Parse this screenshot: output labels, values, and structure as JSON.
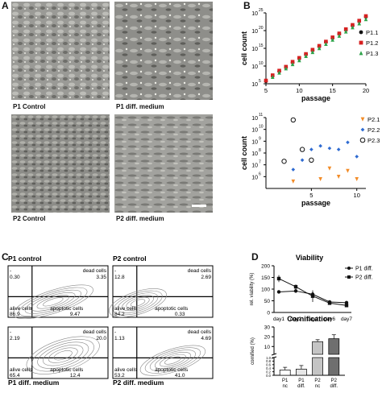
{
  "panel_labels": {
    "a": "A",
    "b": "B",
    "c": "C",
    "d": "D"
  },
  "panel_a": {
    "images": [
      {
        "caption": "P1 Control"
      },
      {
        "caption": "P1 diff. medium"
      },
      {
        "caption": "P2 Control"
      },
      {
        "caption": "P2 diff. medium"
      }
    ]
  },
  "chart_data": [
    {
      "type": "scatter",
      "xlabel": "passage",
      "ylabel": "cell count",
      "xlim": [
        5,
        20
      ],
      "ylim_log10": [
        5,
        25
      ],
      "yticks": [
        "10",
        "10",
        "10",
        "10",
        "10"
      ],
      "ytick_exp": [
        "5",
        "10",
        "15",
        "20",
        "25"
      ],
      "xticks": [
        "5",
        "10",
        "15",
        "20"
      ],
      "legend_position": "right",
      "series": [
        {
          "name": "P1.1",
          "color": "#111111",
          "marker": "circle",
          "x": [
            5,
            6,
            7,
            8,
            9,
            10,
            11,
            12,
            13,
            14,
            15,
            16,
            17,
            18,
            19,
            20
          ],
          "log10_y": [
            5.7,
            7.2,
            8.5,
            9.6,
            11.0,
            12.1,
            13.3,
            14.4,
            15.5,
            16.8,
            17.9,
            19.1,
            20.2,
            21.4,
            22.6,
            23.9
          ]
        },
        {
          "name": "P1.2",
          "color": "#d62020",
          "marker": "square",
          "x": [
            5,
            6,
            7,
            8,
            9,
            10,
            11,
            12,
            13,
            14,
            15,
            16,
            17,
            18,
            19,
            20
          ],
          "log10_y": [
            5.9,
            7.4,
            8.7,
            9.8,
            11.2,
            12.3,
            13.4,
            14.6,
            15.7,
            16.9,
            18.1,
            19.2,
            20.4,
            21.6,
            22.8,
            24.1
          ]
        },
        {
          "name": "P1.3",
          "color": "#2fa34a",
          "marker": "triangle",
          "x": [
            6,
            7,
            8,
            9,
            10,
            11,
            12,
            13,
            14,
            15,
            16,
            17,
            18,
            19,
            20
          ],
          "log10_y": [
            6.9,
            8.1,
            9.3,
            10.5,
            11.6,
            12.8,
            13.9,
            15.0,
            16.2,
            17.4,
            18.5,
            19.7,
            20.9,
            22.0,
            23.2
          ]
        }
      ]
    },
    {
      "type": "scatter",
      "xlabel": "passage",
      "ylabel": "cell count",
      "xlim": [
        0,
        11
      ],
      "ylim_log10": [
        5,
        11
      ],
      "yticks": [
        "10",
        "10",
        "10",
        "10",
        "10",
        "10"
      ],
      "ytick_exp": [
        "6",
        "7",
        "8",
        "9",
        "10",
        "11"
      ],
      "xticks": [
        "5",
        "10"
      ],
      "legend_position": "right",
      "series": [
        {
          "name": "P2.1",
          "color": "#f28c28",
          "marker": "triangle-down",
          "x": [
            3,
            6,
            7,
            8,
            9,
            10
          ],
          "log10_y": [
            5.6,
            5.8,
            6.7,
            6.0,
            6.5,
            5.8
          ]
        },
        {
          "name": "P2.2",
          "color": "#2f6bd1",
          "marker": "diamond",
          "x": [
            2,
            3,
            4,
            5,
            6,
            7,
            8,
            9,
            10
          ],
          "log10_y": [
            7.3,
            6.6,
            7.4,
            8.3,
            8.6,
            8.4,
            8.3,
            8.9,
            7.7
          ]
        },
        {
          "name": "P2.3",
          "color": "#111111",
          "marker": "open-circle",
          "x": [
            2,
            3,
            4,
            5
          ],
          "log10_y": [
            7.3,
            10.8,
            8.3,
            7.4
          ]
        }
      ]
    },
    {
      "type": "line",
      "title": "Viability",
      "ylabel": "rel. viability (%)",
      "categories": [
        "day1",
        "day2",
        "day3",
        "day6",
        "day7"
      ],
      "ylim": [
        0,
        200
      ],
      "yticks": [
        "0",
        "50",
        "100",
        "150",
        "200"
      ],
      "legend_position": "top-right",
      "series": [
        {
          "name": "P1 diff.",
          "color": "#111111",
          "marker": "circle",
          "values": [
            88,
            92,
            78,
            45,
            42
          ],
          "errors": [
            6,
            8,
            10,
            5,
            4
          ]
        },
        {
          "name": "P2 diff.",
          "color": "#111111",
          "marker": "square",
          "values": [
            145,
            110,
            70,
            40,
            30
          ],
          "errors": [
            15,
            10,
            25,
            5,
            4
          ]
        }
      ]
    },
    {
      "type": "bar",
      "title": "Cornification",
      "ylabel": "cornified (%)",
      "categories": [
        "P1\nnc",
        "P1\ndiff.",
        "P2\nnc",
        "P2\ndiff."
      ],
      "category_lines": [
        [
          "P1",
          "nc"
        ],
        [
          "P1",
          "diff."
        ],
        [
          "P2",
          "nc"
        ],
        [
          "P2",
          "diff."
        ]
      ],
      "values": [
        0.3,
        0.35,
        15,
        18
      ],
      "errors": [
        0.15,
        0.2,
        2,
        4
      ],
      "colors": [
        "#ffffff",
        "#e6e6e6",
        "#c4c4c4",
        "#6f6f6f"
      ],
      "yticks_low": [
        "0.0",
        "0.2",
        "0.4",
        "0.6",
        "0.8",
        "1.0"
      ],
      "yticks_high": [
        "10",
        "20",
        "30"
      ],
      "broken_axis": true
    },
    {
      "type": "scatter",
      "subtype": "flow-cytometry-quadrants",
      "plots": [
        {
          "title": "P1 control",
          "ul_label": "-",
          "ul": "0.30",
          "ur_label": "dead cells",
          "ur": "3.35",
          "ll_label": "alive cells",
          "ll": "86.9",
          "lr_label": "apoptotic cells",
          "lr": "9.47"
        },
        {
          "title": "P2 control",
          "ul_label": "-",
          "ul": "12.8",
          "ur_label": "dead cells",
          "ur": "2.69",
          "ll_label": "alive cells",
          "ll": "84.2",
          "lr_label": "apoptotic cells",
          "lr": "0.33"
        },
        {
          "title": "P1 diff. medium",
          "ul_label": "-",
          "ul": "2.19",
          "ur_label": "dead cells",
          "ur": "20.0",
          "ll_label": "alive cells",
          "ll": "65.4",
          "lr_label": "apoptotic cells",
          "lr": "12.4"
        },
        {
          "title": "P2 diff. medium",
          "ul_label": "-",
          "ul": "1.13",
          "ur_label": "dead cells",
          "ur": "4.69",
          "ll_label": "alive cells",
          "ll": "53.2",
          "lr_label": "apoptotic cells",
          "lr": "41.0"
        }
      ]
    }
  ]
}
